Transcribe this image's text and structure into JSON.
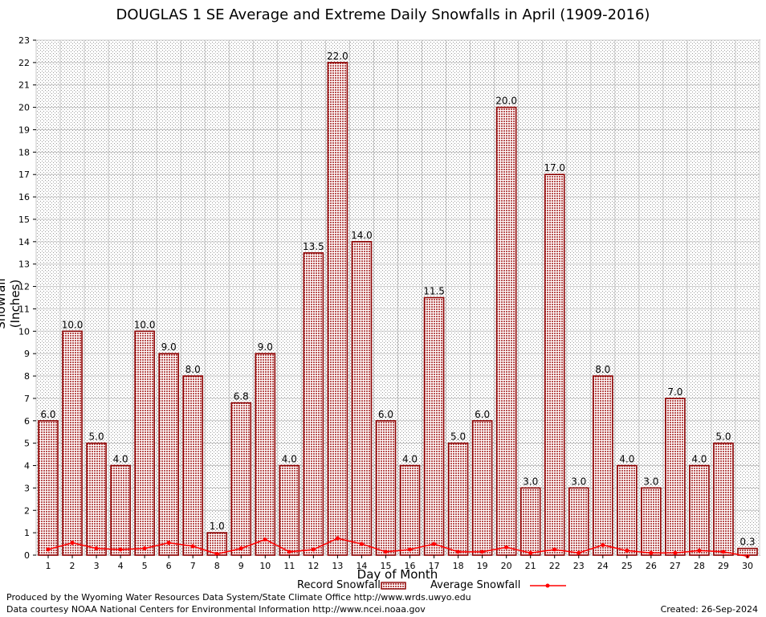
{
  "chart_data": {
    "type": "bar",
    "title": "DOUGLAS 1 SE Average and Extreme Daily Snowfalls in April (1909-2016)",
    "xlabel": "Day of Month",
    "ylabel": "Snowfall (Inches)",
    "ylim": [
      0,
      23
    ],
    "yticks": [
      0,
      1,
      2,
      3,
      4,
      5,
      6,
      7,
      8,
      9,
      10,
      11,
      12,
      13,
      14,
      15,
      16,
      17,
      18,
      19,
      20,
      21,
      22,
      23
    ],
    "grid": true,
    "legend_position": "bottom",
    "categories": [
      "1",
      "2",
      "3",
      "4",
      "5",
      "6",
      "7",
      "8",
      "9",
      "10",
      "11",
      "12",
      "13",
      "14",
      "15",
      "16",
      "17",
      "18",
      "19",
      "20",
      "21",
      "22",
      "23",
      "24",
      "25",
      "26",
      "27",
      "28",
      "29",
      "30"
    ],
    "series": [
      {
        "name": "Record Snowfall",
        "kind": "bar",
        "color": "#b22222",
        "values": [
          6.0,
          10.0,
          5.0,
          4.0,
          10.0,
          9.0,
          8.0,
          1.0,
          6.8,
          9.0,
          4.0,
          13.5,
          22.0,
          14.0,
          6.0,
          4.0,
          11.5,
          5.0,
          6.0,
          20.0,
          3.0,
          17.0,
          3.0,
          8.0,
          4.0,
          3.0,
          7.0,
          4.0,
          5.0,
          0.3
        ],
        "labels": [
          "6.0",
          "10.0",
          "5.0",
          "4.0",
          "10.0",
          "9.0",
          "8.0",
          "1.0",
          "6.8",
          "9.0",
          "4.0",
          "13.5",
          "22.0",
          "14.0",
          "6.0",
          "4.0",
          "11.5",
          "5.0",
          "6.0",
          "20.0",
          "3.0",
          "17.0",
          "3.0",
          "8.0",
          "4.0",
          "3.0",
          "7.0",
          "4.0",
          "5.0",
          "0.3"
        ]
      },
      {
        "name": "Average Snowfall",
        "kind": "line",
        "color": "#ff0000",
        "values": [
          0.25,
          0.55,
          0.3,
          0.25,
          0.3,
          0.55,
          0.4,
          0.05,
          0.3,
          0.7,
          0.15,
          0.25,
          0.75,
          0.5,
          0.15,
          0.25,
          0.5,
          0.15,
          0.15,
          0.35,
          0.1,
          0.25,
          0.1,
          0.45,
          0.2,
          0.1,
          0.1,
          0.2,
          0.15,
          -0.05
        ]
      }
    ]
  },
  "footer": {
    "line1": "Produced by the Wyoming Water Resources Data System/State Climate Office http://www.wrds.uwyo.edu",
    "line2": "Data courtesy NOAA National Centers for Environmental Information http://www.ncei.noaa.gov",
    "created": "Created:  26-Sep-2024"
  }
}
